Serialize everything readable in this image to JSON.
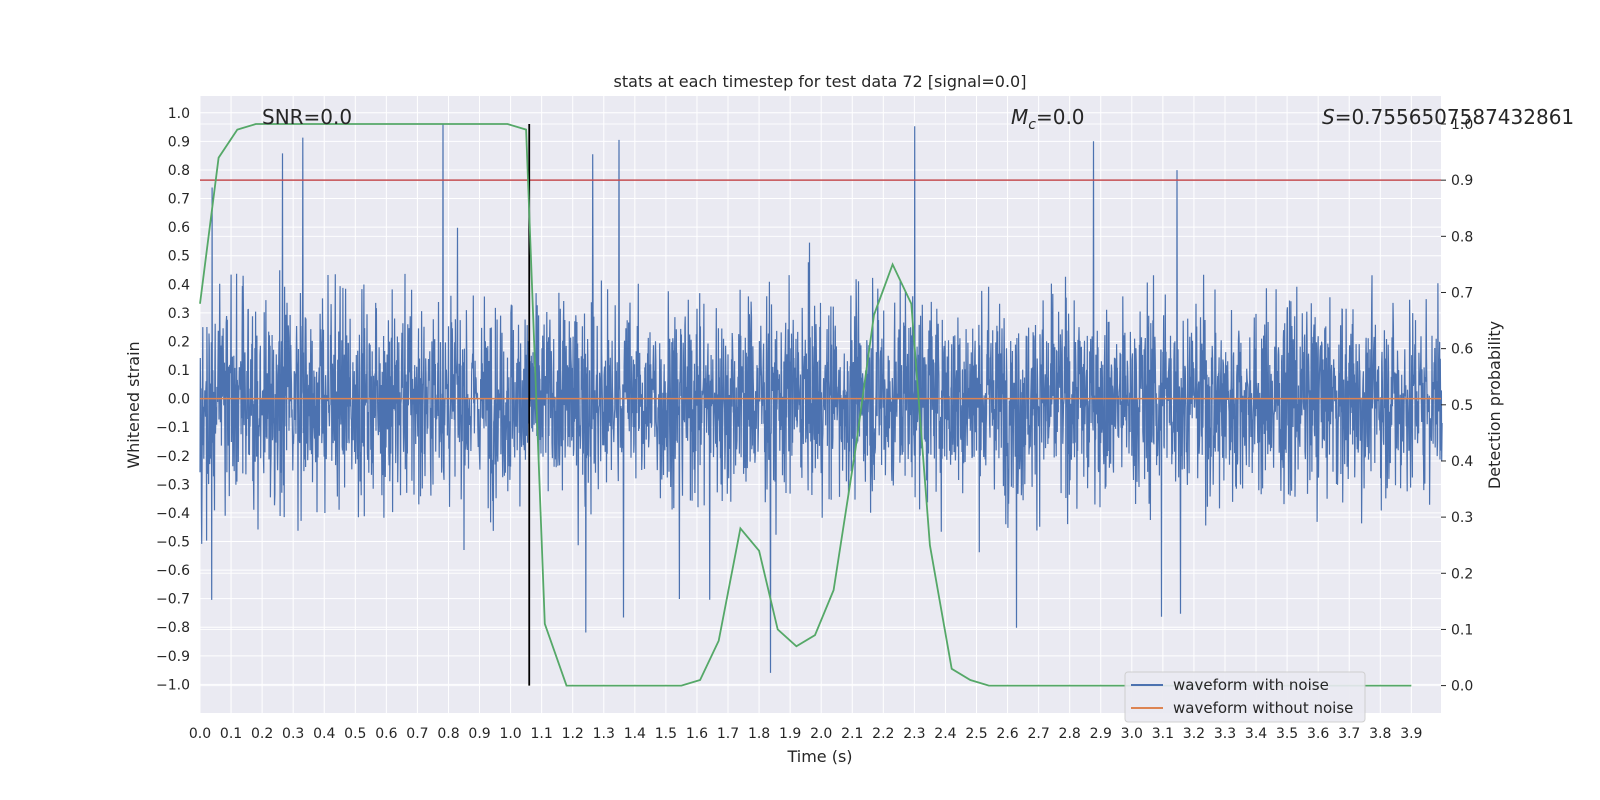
{
  "chart_data": {
    "type": "line",
    "title": "stats at each timestep for test data 72 [signal=0.0]",
    "xlabel": "Time (s)",
    "ylabel": "Whitened strain",
    "y2label": "Detection probability",
    "xlim": [
      0.0,
      4.0
    ],
    "ylim": [
      -1.1,
      1.1
    ],
    "y2lim": [
      -0.05,
      1.05
    ],
    "xticks": [
      "0.0",
      "0.1",
      "0.2",
      "0.3",
      "0.4",
      "0.5",
      "0.6",
      "0.7",
      "0.8",
      "0.9",
      "1.0",
      "1.1",
      "1.2",
      "1.3",
      "1.4",
      "1.5",
      "1.6",
      "1.7",
      "1.8",
      "1.9",
      "2.0",
      "2.1",
      "2.2",
      "2.3",
      "2.4",
      "2.5",
      "2.6",
      "2.7",
      "2.8",
      "2.9",
      "3.0",
      "3.1",
      "3.2",
      "3.3",
      "3.4",
      "3.5",
      "3.6",
      "3.7",
      "3.8",
      "3.9"
    ],
    "yticks": [
      "1.0",
      "0.9",
      "0.8",
      "0.7",
      "0.6",
      "0.5",
      "0.4",
      "0.3",
      "0.2",
      "0.1",
      "0.0",
      "−0.1",
      "−0.2",
      "−0.3",
      "−0.4",
      "−0.5",
      "−0.6",
      "−0.7",
      "−0.8",
      "−0.9",
      "−1.0"
    ],
    "y2ticks": [
      "1.0",
      "0.9",
      "0.8",
      "0.7",
      "0.6",
      "0.5",
      "0.4",
      "0.3",
      "0.2",
      "0.1",
      "0.0"
    ],
    "annotations": {
      "snr": "SNR=0.0",
      "mc": "=0.0",
      "mc_symbol": "M",
      "mc_sub": "c",
      "s": "=0.7556507587432861",
      "s_symbol": "S"
    },
    "series": [
      {
        "name": "waveform with noise",
        "color": "#4c72b0",
        "description": "whitened noise, approx. range -1.0 to 0.96"
      },
      {
        "name": "waveform without noise",
        "color": "#dd8452",
        "y": 0.0
      },
      {
        "name": "detection probability",
        "axis": "right",
        "color": "#55a868",
        "x": [
          0.0,
          0.06,
          0.12,
          0.18,
          0.25,
          0.31,
          0.37,
          0.43,
          0.5,
          0.56,
          0.62,
          0.68,
          0.75,
          0.81,
          0.87,
          0.93,
          0.99,
          1.05,
          1.11,
          1.18,
          1.24,
          1.3,
          1.36,
          1.42,
          1.49,
          1.55,
          1.61,
          1.67,
          1.74,
          1.8,
          1.86,
          1.92,
          1.98,
          2.04,
          2.11,
          2.17,
          2.23,
          2.29,
          2.35,
          2.42,
          2.48,
          2.54,
          2.6,
          2.66,
          2.73,
          2.79,
          2.85,
          2.91,
          2.97,
          3.04,
          3.1,
          3.16,
          3.22,
          3.28,
          3.35,
          3.41,
          3.47,
          3.53,
          3.59,
          3.66,
          3.72,
          3.78,
          3.84,
          3.9
        ],
        "values": [
          0.68,
          0.94,
          0.99,
          1.0,
          1.0,
          1.0,
          1.0,
          1.0,
          1.0,
          1.0,
          1.0,
          1.0,
          1.0,
          1.0,
          1.0,
          1.0,
          1.0,
          0.99,
          0.11,
          0.0,
          0.0,
          0.0,
          0.0,
          0.0,
          0.0,
          0.0,
          0.01,
          0.08,
          0.28,
          0.24,
          0.1,
          0.07,
          0.09,
          0.17,
          0.42,
          0.66,
          0.75,
          0.68,
          0.25,
          0.03,
          0.01,
          0.0,
          0.0,
          0.0,
          0.0,
          0.0,
          0.0,
          0.0,
          0.0,
          0.0,
          0.0,
          0.0,
          0.0,
          0.0,
          0.0,
          0.0,
          0.0,
          0.0,
          0.0,
          0.0,
          0.0,
          0.0,
          0.0,
          0.0
        ]
      }
    ],
    "threshold": {
      "axis": "right",
      "value": 0.9,
      "color": "#c44e52"
    },
    "detection_time": {
      "x": 1.06,
      "color": "#000000"
    },
    "legend": {
      "position": "bottom-right",
      "entries": [
        "waveform with noise",
        "waveform without noise"
      ]
    }
  }
}
